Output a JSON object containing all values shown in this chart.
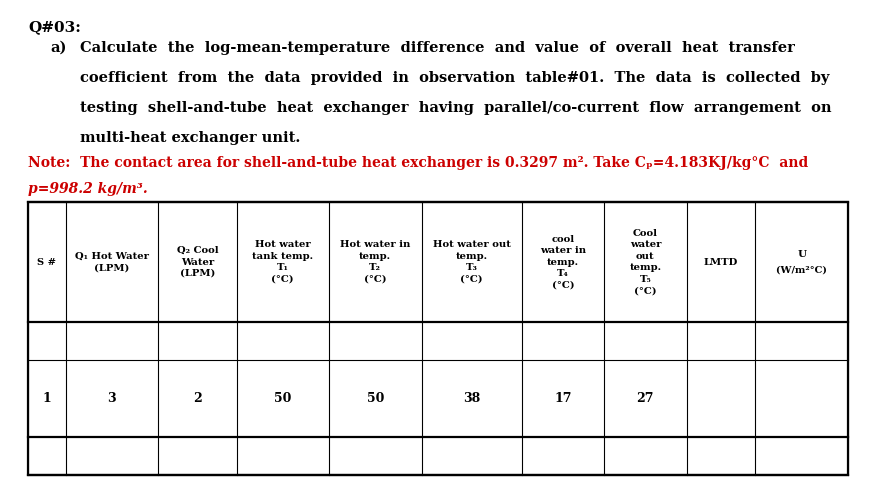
{
  "title": "Q#03:",
  "q_prefix": "a)",
  "q_lines": [
    "Calculate  the  log-mean-temperature  difference  and  value  of  overall  heat  transfer",
    "coefficient  from  the  data  provided  in  observation  table#01.  The  data  is  collected  by",
    "testing  shell-and-tube  heat  exchanger  having  parallel/co-current  flow  arrangement  on",
    "multi-heat exchanger unit."
  ],
  "note1": "Note:  The contact area for shell-and-tube heat exchanger is 0.3297 m². Take Cₚ=4.183KJ/kg°C  and",
  "note2": "p=998.2 kg/m³.",
  "bg_color": "#ffffff",
  "black": "#000000",
  "red": "#cc0000",
  "col_widths": [
    0.48,
    1.18,
    1.0,
    1.18,
    1.18,
    1.28,
    1.05,
    1.05,
    0.88,
    1.18
  ],
  "header_col0": "S #",
  "header_col1": "Q₁ Hot Water\n(LPM)",
  "header_col2": "Q₂ Cool\nWater\n(LPM)",
  "header_col3": "Hot water\ntank temp.\nT₁\n(°C)",
  "header_col4": "Hot water in\ntemp.\nT₂\n(°C)",
  "header_col5": "Hot water out\ntemp.\nT₃\n(°C)",
  "header_col6": "cool\nwater in\ntemp.\nT₄\n(°C)",
  "header_col7": "Cool\nwater\nout\ntemp.\nT₅\n(°C)",
  "header_col8": "LMTD",
  "header_col9_line1": "U",
  "header_col9_line2": "(W/⁠m²°C)",
  "data_row": [
    "1",
    "3",
    "2",
    "50",
    "50",
    "38",
    "17",
    "27",
    "",
    ""
  ]
}
